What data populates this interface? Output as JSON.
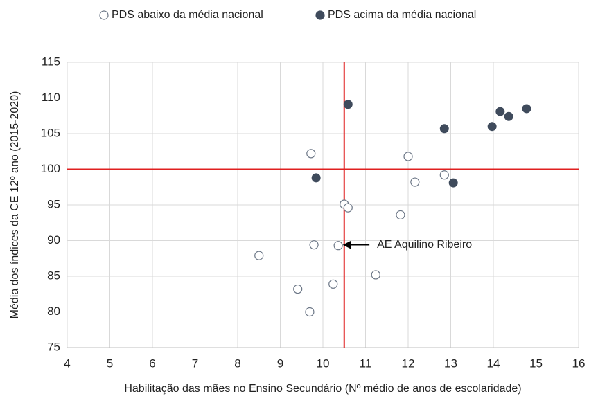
{
  "chart_data": {
    "type": "scatter",
    "xlabel": "Habilitação das mães no Ensino Secundário (Nº médio de anos de escolaridade)",
    "ylabel": "Média dos índices da CE 12º ano (2015-2020)",
    "xlim": [
      4,
      16
    ],
    "xticks": [
      4,
      5,
      6,
      7,
      8,
      9,
      10,
      11,
      12,
      13,
      14,
      15,
      16
    ],
    "ylim": [
      75,
      115
    ],
    "yticks": [
      75,
      80,
      85,
      90,
      95,
      100,
      105,
      110,
      115
    ],
    "grid": true,
    "legend": "top",
    "reference_lines": {
      "x": 10.5,
      "y": 100,
      "color": "#e02020"
    },
    "series": [
      {
        "name": "PDS abaixo da média nacional",
        "color": "#6b7686",
        "marker": "hollow",
        "x": [
          9.72,
          12.0,
          12.85,
          12.16,
          10.5,
          10.59,
          11.82,
          9.79,
          10.36,
          8.5,
          9.41,
          10.24,
          11.24,
          9.69
        ],
        "values": [
          102.2,
          101.8,
          99.2,
          98.2,
          95.1,
          94.6,
          93.6,
          89.4,
          89.3,
          87.9,
          83.2,
          83.9,
          85.2,
          80.0
        ]
      },
      {
        "name": "PDS acima da média nacional",
        "color": "#3f4b5c",
        "marker": "filled",
        "x": [
          10.59,
          9.84,
          12.85,
          13.06,
          13.97,
          14.16,
          14.36,
          14.78
        ],
        "values": [
          109.1,
          98.8,
          105.7,
          98.1,
          106.0,
          108.1,
          107.4,
          108.5
        ]
      }
    ],
    "annotations": [
      {
        "text": "AE Aquilino Ribeiro",
        "x": 10.36,
        "y": 89.3
      }
    ]
  }
}
